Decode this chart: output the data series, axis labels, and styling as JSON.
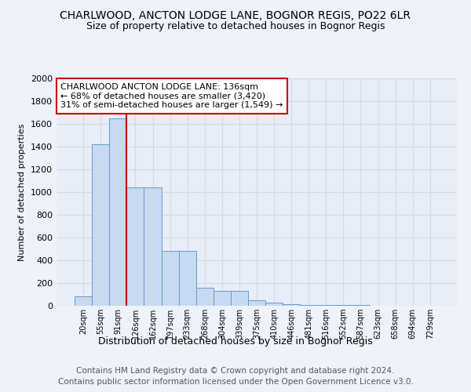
{
  "title1": "CHARLWOOD, ANCTON LODGE LANE, BOGNOR REGIS, PO22 6LR",
  "title2": "Size of property relative to detached houses in Bognor Regis",
  "xlabel": "Distribution of detached houses by size in Bognor Regis",
  "ylabel": "Number of detached properties",
  "footer1": "Contains HM Land Registry data © Crown copyright and database right 2024.",
  "footer2": "Contains public sector information licensed under the Open Government Licence v3.0.",
  "annotation_line1": "CHARLWOOD ANCTON LODGE LANE: 136sqm",
  "annotation_line2": "← 68% of detached houses are smaller (3,420)",
  "annotation_line3": "31% of semi-detached houses are larger (1,549) →",
  "bar_labels": [
    "20sqm",
    "55sqm",
    "91sqm",
    "126sqm",
    "162sqm",
    "197sqm",
    "233sqm",
    "268sqm",
    "304sqm",
    "339sqm",
    "375sqm",
    "410sqm",
    "446sqm",
    "481sqm",
    "516sqm",
    "552sqm",
    "587sqm",
    "623sqm",
    "658sqm",
    "694sqm",
    "729sqm"
  ],
  "bar_values": [
    80,
    1420,
    1650,
    1040,
    1040,
    480,
    480,
    160,
    130,
    130,
    50,
    30,
    15,
    10,
    8,
    5,
    4,
    3,
    2,
    2,
    1
  ],
  "bar_color": "#c9d9f0",
  "bar_edge_color": "#6699cc",
  "vline_x": 2.5,
  "vline_color": "#cc0000",
  "annotation_box_edge_color": "#cc0000",
  "ylim": [
    0,
    2000
  ],
  "yticks": [
    0,
    200,
    400,
    600,
    800,
    1000,
    1200,
    1400,
    1600,
    1800,
    2000
  ],
  "background_color": "#eef2fb",
  "plot_bg_color": "#e8eef8",
  "grid_color": "#d0d8ec",
  "title1_fontsize": 10,
  "title2_fontsize": 9,
  "xlabel_fontsize": 9,
  "ylabel_fontsize": 8,
  "annotation_fontsize": 8,
  "footer_fontsize": 7.5
}
